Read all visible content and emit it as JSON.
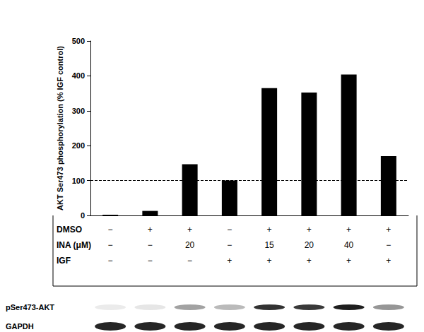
{
  "chart_data": {
    "type": "bar",
    "y_label": "AKT Ser473 phosphorylation (% IGF control)",
    "categories": [
      null,
      null,
      null,
      null,
      null,
      null,
      null,
      null
    ],
    "values": [
      2,
      13,
      147,
      100,
      365,
      352,
      404,
      170
    ],
    "color": "#000000",
    "ylim": [
      0,
      500
    ],
    "yticks": [
      0,
      100,
      200,
      300,
      400,
      500
    ],
    "reference_line": 100,
    "grid": false,
    "tick_labels": "y",
    "conditions": [
      {
        "label": "DMSO",
        "values": [
          "−",
          "+",
          "+",
          "−",
          "+",
          "+",
          "+",
          "+"
        ]
      },
      {
        "label": "INA (μM)",
        "values": [
          "−",
          "−",
          "20",
          "−",
          "15",
          "20",
          "40",
          "−"
        ]
      },
      {
        "label": "IGF",
        "values": [
          "−",
          "−",
          "−",
          "+",
          "+",
          "+",
          "+",
          "+"
        ]
      }
    ],
    "blot": [
      {
        "label": "pSer473-AKT"
      },
      {
        "label": "GAPDH"
      }
    ]
  }
}
